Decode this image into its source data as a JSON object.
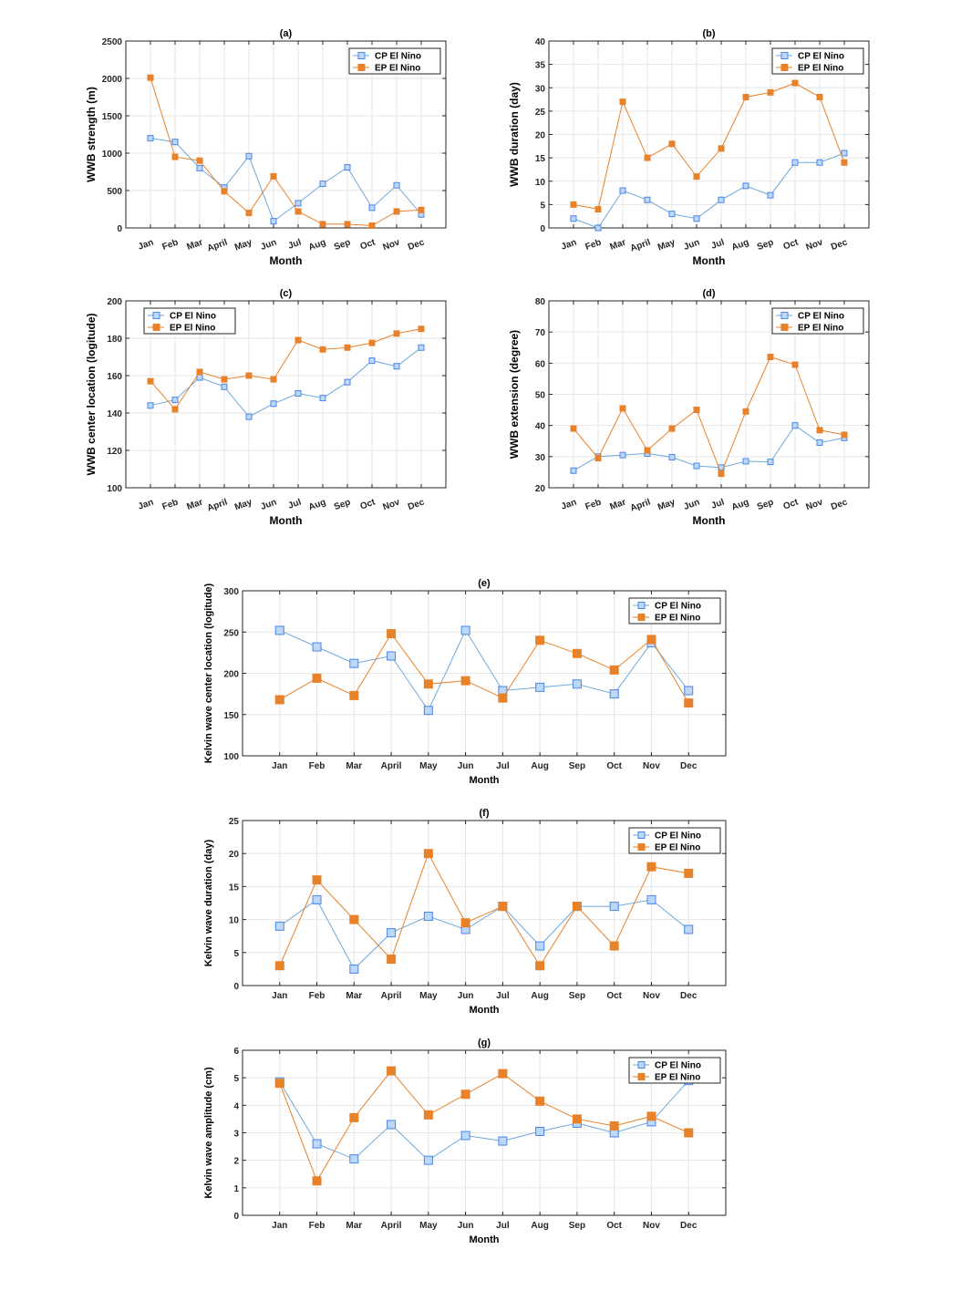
{
  "colors": {
    "cp_line": "#6fa8dc",
    "cp_fill": "#bcd7f7",
    "cp_edge": "#4a86e8",
    "ep": "#e8822a"
  },
  "chart_data": [
    {
      "id": "a",
      "type": "line",
      "title": "(a)",
      "xlabel": "Month",
      "ylabel": "WWB strength (m)",
      "categories": [
        "Jan",
        "Feb",
        "Mar",
        "April",
        "May",
        "Jun",
        "Jul",
        "Aug",
        "Sep",
        "Oct",
        "Nov",
        "Dec"
      ],
      "ylim": [
        0,
        2500
      ],
      "yticks": [
        0,
        500,
        1000,
        1500,
        2000,
        2500
      ],
      "legend_position": "top-right",
      "series": [
        {
          "name": "CP El Nino",
          "values": [
            1200,
            1150,
            800,
            540,
            960,
            90,
            330,
            590,
            810,
            270,
            570,
            180
          ]
        },
        {
          "name": "EP El Nino",
          "values": [
            2010,
            950,
            900,
            490,
            200,
            690,
            220,
            50,
            50,
            30,
            220,
            240
          ]
        }
      ]
    },
    {
      "id": "b",
      "type": "line",
      "title": "(b)",
      "xlabel": "Month",
      "ylabel": "WWB duration (day)",
      "categories": [
        "Jan",
        "Feb",
        "Mar",
        "April",
        "May",
        "Jun",
        "Jul",
        "Aug",
        "Sep",
        "Oct",
        "Nov",
        "Dec"
      ],
      "ylim": [
        0,
        40
      ],
      "yticks": [
        0,
        5,
        10,
        15,
        20,
        25,
        30,
        35,
        40
      ],
      "legend_position": "top-right",
      "series": [
        {
          "name": "CP El Nino",
          "values": [
            2,
            0,
            8,
            6,
            3,
            2,
            6,
            9,
            7,
            14,
            14,
            16
          ]
        },
        {
          "name": "EP El Nino",
          "values": [
            5,
            4,
            27,
            15,
            18,
            11,
            17,
            28,
            29,
            31,
            28,
            14
          ]
        }
      ]
    },
    {
      "id": "c",
      "type": "line",
      "title": "(c)",
      "xlabel": "Month",
      "ylabel": "WWB center location (logitude)",
      "categories": [
        "Jan",
        "Feb",
        "Mar",
        "April",
        "May",
        "Jun",
        "Jul",
        "Aug",
        "Sep",
        "Oct",
        "Nov",
        "Dec"
      ],
      "ylim": [
        100,
        200
      ],
      "yticks": [
        100,
        120,
        140,
        160,
        180,
        200
      ],
      "legend_position": "top-left",
      "series": [
        {
          "name": "CP El Nino",
          "values": [
            144,
            147,
            159,
            154,
            138,
            145,
            150.5,
            148,
            156.5,
            168,
            165,
            175
          ]
        },
        {
          "name": "EP El Nino",
          "values": [
            157,
            142,
            162,
            158,
            160,
            158,
            179,
            174,
            175,
            177.5,
            182.5,
            185
          ]
        }
      ]
    },
    {
      "id": "d",
      "type": "line",
      "title": "(d)",
      "xlabel": "Month",
      "ylabel": "WWB extension (degree)",
      "categories": [
        "Jan",
        "Feb",
        "Mar",
        "April",
        "May",
        "Jun",
        "Jul",
        "Aug",
        "Sep",
        "Oct",
        "Nov",
        "Dec"
      ],
      "ylim": [
        20,
        80
      ],
      "yticks": [
        20,
        30,
        40,
        50,
        60,
        70,
        80
      ],
      "legend_position": "top-right",
      "series": [
        {
          "name": "CP El Nino",
          "values": [
            25.5,
            30,
            30.5,
            31,
            29.8,
            27,
            26.5,
            28.5,
            28.3,
            40,
            34.5,
            36
          ]
        },
        {
          "name": "EP El Nino",
          "values": [
            39,
            29.5,
            45.5,
            32,
            39,
            45,
            24.5,
            44.5,
            62,
            59.5,
            38.5,
            37
          ]
        }
      ]
    },
    {
      "id": "e",
      "type": "line",
      "title": "(e)",
      "xlabel": "Month",
      "ylabel": "Kelvin wave center location (logitude)",
      "categories": [
        "Jan",
        "Feb",
        "Mar",
        "April",
        "May",
        "Jun",
        "Jul",
        "Aug",
        "Sep",
        "Oct",
        "Nov",
        "Dec"
      ],
      "ylim": [
        100,
        300
      ],
      "yticks": [
        100,
        150,
        200,
        250,
        300
      ],
      "legend_position": "top-right",
      "series": [
        {
          "name": "CP El Nino",
          "values": [
            252,
            232,
            212,
            221,
            155,
            252,
            179,
            183,
            187,
            175,
            237,
            179
          ]
        },
        {
          "name": "EP El Nino",
          "values": [
            168,
            194,
            173,
            248,
            187,
            191,
            170,
            240,
            224,
            204,
            241,
            164
          ]
        }
      ]
    },
    {
      "id": "f",
      "type": "line",
      "title": "(f)",
      "xlabel": "Month",
      "ylabel": "Kelvin wave duration (day)",
      "categories": [
        "Jan",
        "Feb",
        "Mar",
        "April",
        "May",
        "Jun",
        "Jul",
        "Aug",
        "Sep",
        "Oct",
        "Nov",
        "Dec"
      ],
      "ylim": [
        0,
        25
      ],
      "yticks": [
        0,
        5,
        10,
        15,
        20,
        25
      ],
      "legend_position": "top-right",
      "series": [
        {
          "name": "CP El Nino",
          "values": [
            9,
            13,
            2.5,
            8,
            10.5,
            8.5,
            12,
            6,
            12,
            12,
            13,
            8.5
          ]
        },
        {
          "name": "EP El Nino",
          "values": [
            3,
            16,
            10,
            4,
            20,
            9.5,
            12,
            3,
            12,
            6,
            18,
            17
          ]
        }
      ]
    },
    {
      "id": "g",
      "type": "line",
      "title": "(g)",
      "xlabel": "Month",
      "ylabel": "Kelvin wave amplitude (cm)",
      "categories": [
        "Jan",
        "Feb",
        "Mar",
        "April",
        "May",
        "Jun",
        "Jul",
        "Aug",
        "Sep",
        "Oct",
        "Nov",
        "Dec"
      ],
      "ylim": [
        0,
        6
      ],
      "yticks": [
        0,
        1,
        2,
        3,
        4,
        5,
        6
      ],
      "legend_position": "top-right",
      "series": [
        {
          "name": "CP El Nino",
          "values": [
            4.85,
            2.6,
            2.05,
            3.3,
            2.0,
            2.9,
            2.7,
            3.05,
            3.35,
            3.0,
            3.4,
            4.9
          ]
        },
        {
          "name": "EP El Nino",
          "values": [
            4.8,
            1.25,
            3.55,
            5.25,
            3.65,
            4.4,
            5.15,
            4.15,
            3.5,
            3.25,
            3.6,
            3.0
          ]
        }
      ]
    }
  ]
}
